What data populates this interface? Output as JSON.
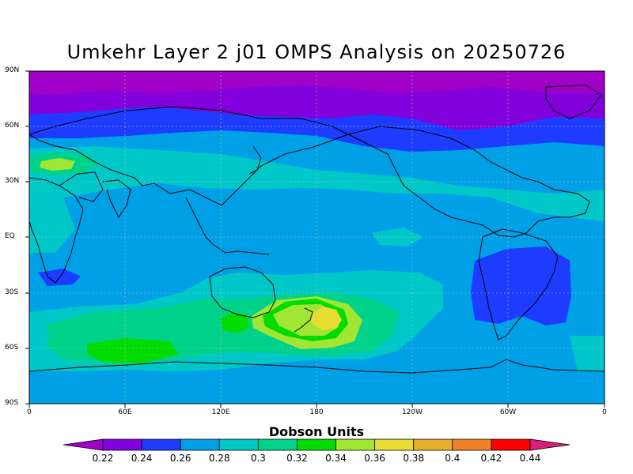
{
  "map": {
    "title": "Umkehr Layer 2 j01 OMPS Analysis on 20250726",
    "lat_labels": [
      "90N",
      "60N",
      "30N",
      "EQ",
      "30S",
      "60S",
      "90S"
    ],
    "lon_labels": [
      "0",
      "60E",
      "120E",
      "180",
      "120W",
      "60W",
      "0"
    ],
    "colorbar": {
      "title": "Dobson Units",
      "labels": [
        "0.22",
        "0.24",
        "0.26",
        "0.28",
        "0.3",
        "0.32",
        "0.34",
        "0.36",
        "0.38",
        "0.4",
        "0.42",
        "0.44"
      ],
      "colors": [
        "#a000c8",
        "#8200dc",
        "#1e3cff",
        "#00a0e6",
        "#00c8c8",
        "#00d28c",
        "#00dc00",
        "#a0e632",
        "#e6dc32",
        "#e6af2d",
        "#f08228",
        "#fa0000",
        "#d81e7a"
      ]
    },
    "field_colors": {
      "purple": "#a000c8",
      "violet": "#8200dc",
      "blue": "#1e3cff",
      "lightblue": "#00a0e6",
      "cyan": "#00c8c8",
      "teal": "#00d28c",
      "green": "#00dc00",
      "lime": "#a0e632",
      "yellow": "#e6dc32"
    }
  }
}
